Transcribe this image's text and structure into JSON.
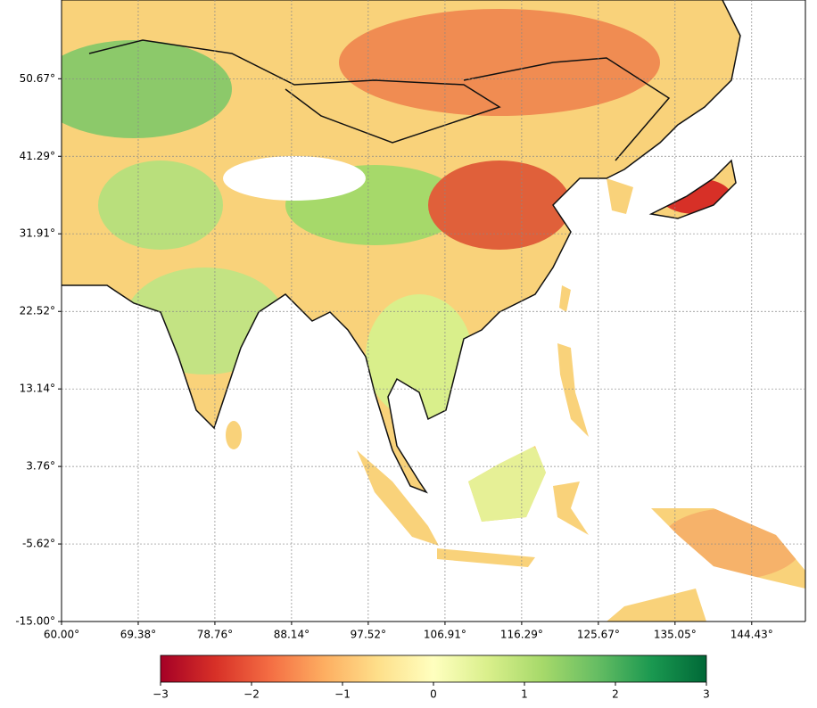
{
  "map": {
    "type": "map",
    "xlim": [
      60,
      151
    ],
    "ylim": [
      -15,
      60.2
    ],
    "xticks": [
      {
        "value": 60,
        "label": "60.00°"
      },
      {
        "value": 69.38,
        "label": "69.38°"
      },
      {
        "value": 78.76,
        "label": "78.76°"
      },
      {
        "value": 88.14,
        "label": "88.14°"
      },
      {
        "value": 97.52,
        "label": "97.52°"
      },
      {
        "value": 106.91,
        "label": "106.91°"
      },
      {
        "value": 116.29,
        "label": "116.29°"
      },
      {
        "value": 125.67,
        "label": "125.67°"
      },
      {
        "value": 135.05,
        "label": "135.05°"
      },
      {
        "value": 144.43,
        "label": "144.43°"
      }
    ],
    "yticks": [
      {
        "value": -15,
        "label": "-15.00°"
      },
      {
        "value": -5.62,
        "label": "-5.62°"
      },
      {
        "value": 3.76,
        "label": "3.76°"
      },
      {
        "value": 13.14,
        "label": "13.14°"
      },
      {
        "value": 22.52,
        "label": "22.52°"
      },
      {
        "value": 31.91,
        "label": "31.91°"
      },
      {
        "value": 41.29,
        "label": "41.29°"
      },
      {
        "value": 50.67,
        "label": "50.67°"
      }
    ],
    "grid": true,
    "colorbar": {
      "lim": [
        -3,
        3
      ],
      "ticks": [
        {
          "value": -3,
          "label": "−3"
        },
        {
          "value": -2,
          "label": "−2"
        },
        {
          "value": -1,
          "label": "−1"
        },
        0,
        1,
        2,
        3
      ],
      "colors": [
        "#a50026",
        "#d73027",
        "#f46d43",
        "#fdae61",
        "#fee08b",
        "#ffffbf",
        "#d9ef8b",
        "#a6d96a",
        "#66bd63",
        "#1a9850",
        "#006837"
      ]
    }
  }
}
